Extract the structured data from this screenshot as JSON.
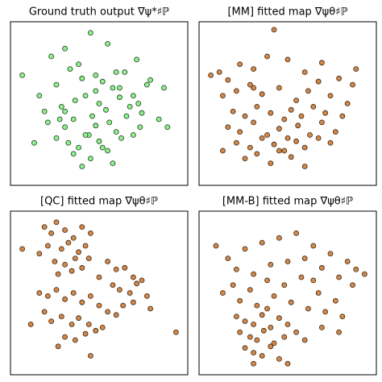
{
  "chart_data": [
    {
      "type": "scatter",
      "title": "Ground truth output ∇ψ*♯ℙ",
      "color": "#90ee90",
      "edge": "#1a3d1a",
      "xlim": [
        0,
        100
      ],
      "ylim": [
        0,
        100
      ],
      "x": [
        45,
        5,
        22,
        30,
        38,
        55,
        60,
        72,
        80,
        88,
        15,
        25,
        33,
        40,
        48,
        52,
        58,
        65,
        70,
        78,
        18,
        28,
        36,
        42,
        46,
        50,
        54,
        62,
        68,
        75,
        20,
        30,
        35,
        44,
        48,
        56,
        60,
        66,
        74,
        85,
        25,
        32,
        38,
        42,
        50,
        55,
        63,
        70,
        35,
        45,
        52,
        58,
        40,
        30,
        90,
        12,
        62,
        48,
        27,
        73
      ],
      "y": [
        95,
        68,
        80,
        85,
        75,
        88,
        70,
        78,
        65,
        60,
        55,
        62,
        72,
        66,
        58,
        64,
        60,
        70,
        55,
        62,
        45,
        48,
        52,
        55,
        42,
        50,
        46,
        54,
        48,
        44,
        38,
        35,
        40,
        30,
        36,
        38,
        32,
        42,
        35,
        40,
        28,
        25,
        22,
        30,
        26,
        20,
        28,
        30,
        18,
        15,
        22,
        12,
        10,
        45,
        35,
        25,
        60,
        68,
        40,
        50
      ]
    },
    {
      "type": "scatter",
      "title": "[MM] fitted map ∇ψθ♯ℙ",
      "color": "#d2884a",
      "edge": "#3a2410",
      "xlim": [
        0,
        100
      ],
      "ylim": [
        0,
        100
      ],
      "x": [
        42,
        5,
        10,
        15,
        22,
        30,
        38,
        50,
        60,
        70,
        80,
        88,
        12,
        20,
        28,
        35,
        45,
        55,
        62,
        68,
        75,
        85,
        18,
        25,
        32,
        40,
        48,
        52,
        58,
        65,
        72,
        82,
        15,
        22,
        30,
        38,
        45,
        50,
        56,
        63,
        70,
        78,
        20,
        28,
        35,
        42,
        48,
        55,
        60,
        68,
        25,
        32,
        40,
        45,
        52,
        12,
        60,
        30,
        75,
        90
      ],
      "y": [
        97,
        68,
        70,
        65,
        75,
        72,
        80,
        78,
        70,
        76,
        66,
        62,
        55,
        58,
        62,
        56,
        60,
        52,
        58,
        64,
        55,
        50,
        45,
        42,
        48,
        44,
        40,
        46,
        42,
        48,
        44,
        42,
        35,
        32,
        38,
        30,
        34,
        28,
        36,
        30,
        38,
        32,
        25,
        22,
        28,
        24,
        20,
        26,
        22,
        28,
        15,
        18,
        12,
        20,
        16,
        20,
        10,
        60,
        25,
        72
      ]
    },
    {
      "type": "scatter",
      "title": "[QC] fitted map ∇ψθ♯ℙ",
      "color": "#d2884a",
      "edge": "#3a2410",
      "xlim": [
        0,
        100
      ],
      "ylim": [
        0,
        100
      ],
      "x": [
        18,
        22,
        25,
        30,
        35,
        40,
        45,
        20,
        28,
        32,
        38,
        42,
        24,
        30,
        36,
        26,
        34,
        40,
        15,
        44,
        55,
        60,
        65,
        70,
        75,
        58,
        62,
        68,
        72,
        78,
        64,
        70,
        15,
        20,
        25,
        30,
        35,
        40,
        45,
        50,
        55,
        60,
        18,
        22,
        28,
        34,
        38,
        44,
        48,
        52,
        30,
        36,
        42,
        26,
        5,
        95,
        50,
        80,
        10,
        45
      ],
      "y": [
        92,
        88,
        95,
        90,
        85,
        92,
        88,
        80,
        78,
        82,
        76,
        80,
        70,
        68,
        72,
        62,
        64,
        66,
        75,
        72,
        70,
        65,
        66,
        60,
        58,
        55,
        52,
        50,
        56,
        48,
        42,
        44,
        50,
        48,
        52,
        46,
        50,
        44,
        48,
        42,
        38,
        36,
        38,
        32,
        35,
        30,
        34,
        30,
        26,
        28,
        22,
        20,
        24,
        16,
        78,
        25,
        60,
        40,
        30,
        10
      ]
    },
    {
      "type": "scatter",
      "title": "[MM-B] fitted map ∇ψθ♯ℙ",
      "color": "#d2884a",
      "edge": "#3a2410",
      "xlim": [
        0,
        100
      ],
      "ylim": [
        0,
        100
      ],
      "x": [
        8,
        15,
        25,
        35,
        45,
        55,
        65,
        75,
        85,
        90,
        20,
        30,
        40,
        50,
        60,
        70,
        80,
        88,
        18,
        28,
        38,
        48,
        58,
        68,
        78,
        22,
        32,
        42,
        52,
        62,
        72,
        82,
        20,
        25,
        30,
        35,
        40,
        45,
        50,
        55,
        22,
        28,
        32,
        36,
        42,
        48,
        25,
        30,
        35,
        40,
        45,
        60,
        70,
        50,
        80,
        12,
        95,
        38,
        65,
        30
      ],
      "y": [
        80,
        72,
        78,
        82,
        85,
        88,
        80,
        75,
        70,
        65,
        65,
        62,
        68,
        70,
        72,
        66,
        60,
        55,
        55,
        52,
        58,
        55,
        60,
        50,
        45,
        45,
        42,
        48,
        44,
        40,
        38,
        35,
        35,
        32,
        30,
        36,
        28,
        34,
        30,
        25,
        25,
        22,
        20,
        26,
        18,
        22,
        15,
        12,
        10,
        16,
        8,
        20,
        28,
        5,
        25,
        50,
        62,
        40,
        58,
        5
      ]
    }
  ]
}
